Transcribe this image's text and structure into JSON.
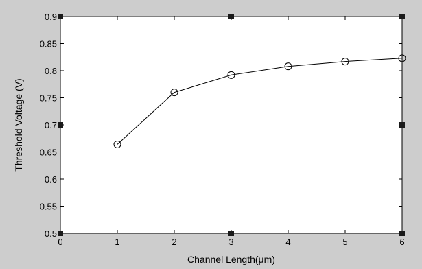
{
  "colors": {
    "figure_background": "#cdcdcd",
    "axes_background": "#ffffff",
    "line": "#000000",
    "handle": "#1a1a1a"
  },
  "chart_data": {
    "type": "line",
    "title": "",
    "xlabel": "Channel Length(μm)",
    "ylabel": "Threshold Voltage (V)",
    "xlim": [
      0,
      6
    ],
    "ylim": [
      0.5,
      0.9
    ],
    "xticks": [
      0,
      1,
      2,
      3,
      4,
      5,
      6
    ],
    "xtick_labels": [
      "0",
      "1",
      "2",
      "3",
      "4",
      "5",
      "6"
    ],
    "yticks": [
      0.5,
      0.55,
      0.6,
      0.65,
      0.7,
      0.75,
      0.8,
      0.85,
      0.9
    ],
    "ytick_labels": [
      "0.5",
      "0.55",
      "0.6",
      "0.65",
      "0.7",
      "0.75",
      "0.8",
      "0.85",
      "0.9"
    ],
    "grid": false,
    "legend": "none",
    "series": [
      {
        "marker": "open-circle",
        "x": [
          1,
          2,
          3,
          4,
          5,
          6
        ],
        "y": [
          0.664,
          0.76,
          0.792,
          0.808,
          0.817,
          0.823
        ]
      }
    ]
  }
}
